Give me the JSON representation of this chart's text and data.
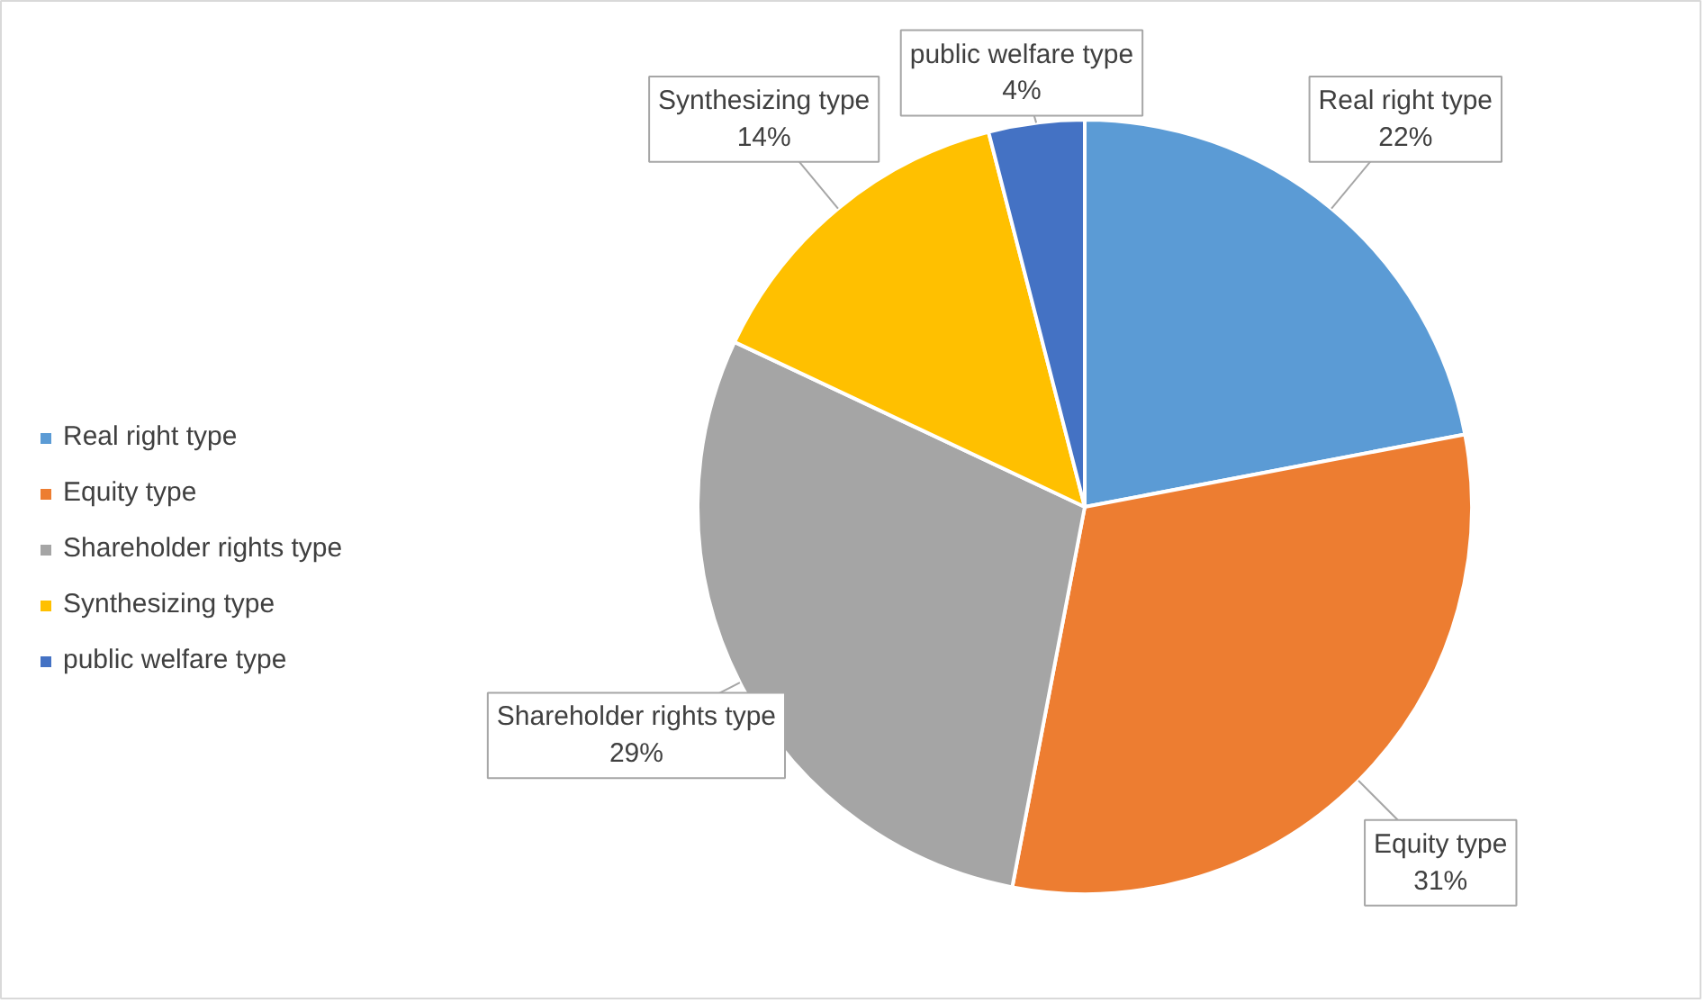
{
  "chart_data": {
    "type": "pie",
    "categories": [
      "Real right type",
      "Equity type",
      "Shareholder rights type",
      "Synthesizing type",
      "public welfare type"
    ],
    "values": [
      22,
      31,
      29,
      14,
      4
    ],
    "value_labels": [
      "22%",
      "31%",
      "29%",
      "14%",
      "4%"
    ],
    "colors": [
      "#5b9bd5",
      "#ed7d31",
      "#a5a5a5",
      "#ffc000",
      "#4472c4"
    ],
    "legend": "left"
  }
}
